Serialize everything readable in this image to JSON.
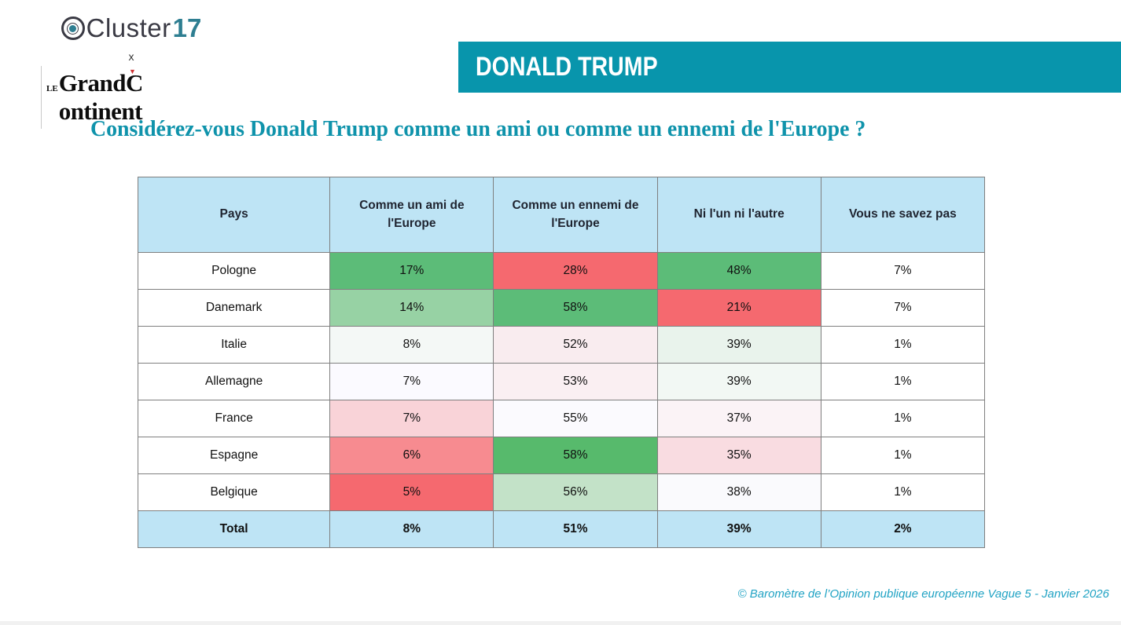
{
  "colors": {
    "banner_bg": "#0895ac",
    "question_text": "#0f93ab",
    "header_cell_bg": "#bee4f5",
    "total_row_bg": "#bee4f5",
    "footer_text": "#21a3c4",
    "grid_line": "#7f7f7f",
    "strong_green": "#5cbc78",
    "strong_red": "#f5696f"
  },
  "logos": {
    "cluster17": {
      "word": "Cluster",
      "number": "17"
    },
    "separator": "x",
    "grand_continent": {
      "le": "LE",
      "part1": "Grand",
      "part2_c": "C",
      "part2_rest": "ontinent"
    }
  },
  "banner": {
    "title": "DONALD TRUMP"
  },
  "question": "Considérez-vous Donald Trump comme un ami ou comme un ennemi de l'Europe ?",
  "table": {
    "headers": [
      "Pays",
      "Comme un ami de l'Europe",
      "Comme un ennemi de l'Europe",
      "Ni l'un ni l'autre",
      "Vous ne savez pas"
    ],
    "rows": [
      {
        "pays": "Pologne",
        "values": [
          "17%",
          "28%",
          "48%",
          "7%"
        ],
        "colors": [
          "#5cbc78",
          "#f5696f",
          "#5cbc78",
          "#ffffff"
        ]
      },
      {
        "pays": "Danemark",
        "values": [
          "14%",
          "58%",
          "21%",
          "7%"
        ],
        "colors": [
          "#97d2a4",
          "#5cbc78",
          "#f5696f",
          "#ffffff"
        ]
      },
      {
        "pays": "Italie",
        "values": [
          "8%",
          "52%",
          "39%",
          "1%"
        ],
        "colors": [
          "#f4f8f6",
          "#f9ecef",
          "#e9f3ec",
          "#ffffff"
        ]
      },
      {
        "pays": "Allemagne",
        "values": [
          "7%",
          "53%",
          "39%",
          "1%"
        ],
        "colors": [
          "#fbfaff",
          "#faeff2",
          "#f2f8f4",
          "#ffffff"
        ]
      },
      {
        "pays": "France",
        "values": [
          "7%",
          "55%",
          "37%",
          "1%"
        ],
        "colors": [
          "#f9d3d8",
          "#fbfafe",
          "#fbf3f6",
          "#ffffff"
        ]
      },
      {
        "pays": "Espagne",
        "values": [
          "6%",
          "58%",
          "35%",
          "1%"
        ],
        "colors": [
          "#f78b90",
          "#57ba6c",
          "#f9dce1",
          "#ffffff"
        ]
      },
      {
        "pays": "Belgique",
        "values": [
          "5%",
          "56%",
          "38%",
          "1%"
        ],
        "colors": [
          "#f5696f",
          "#c3e2c8",
          "#fafafd",
          "#ffffff"
        ]
      }
    ],
    "total": {
      "pays": "Total",
      "values": [
        "8%",
        "51%",
        "39%",
        "2%"
      ],
      "bg": "#bee4f5"
    }
  },
  "footer": "© Baromètre de l’Opinion publique européenne Vague 5 - Janvier 2026",
  "chart_data": {
    "type": "table",
    "title": "Considérez-vous Donald Trump comme un ami ou comme un ennemi de l'Europe ?",
    "categories": [
      "Pologne",
      "Danemark",
      "Italie",
      "Allemagne",
      "France",
      "Espagne",
      "Belgique"
    ],
    "series": [
      {
        "name": "Comme un ami de l'Europe",
        "values": [
          17,
          14,
          8,
          7,
          7,
          6,
          5
        ],
        "total": 8
      },
      {
        "name": "Comme un ennemi de l'Europe",
        "values": [
          28,
          58,
          52,
          53,
          55,
          58,
          56
        ],
        "total": 51
      },
      {
        "name": "Ni l'un ni l'autre",
        "values": [
          48,
          21,
          39,
          39,
          37,
          35,
          38
        ],
        "total": 39
      },
      {
        "name": "Vous ne savez pas",
        "values": [
          7,
          7,
          1,
          1,
          1,
          1,
          1
        ],
        "total": 2
      }
    ],
    "unit": "%",
    "source": "Baromètre de l’Opinion publique européenne Vague 5 - Janvier 2026"
  }
}
